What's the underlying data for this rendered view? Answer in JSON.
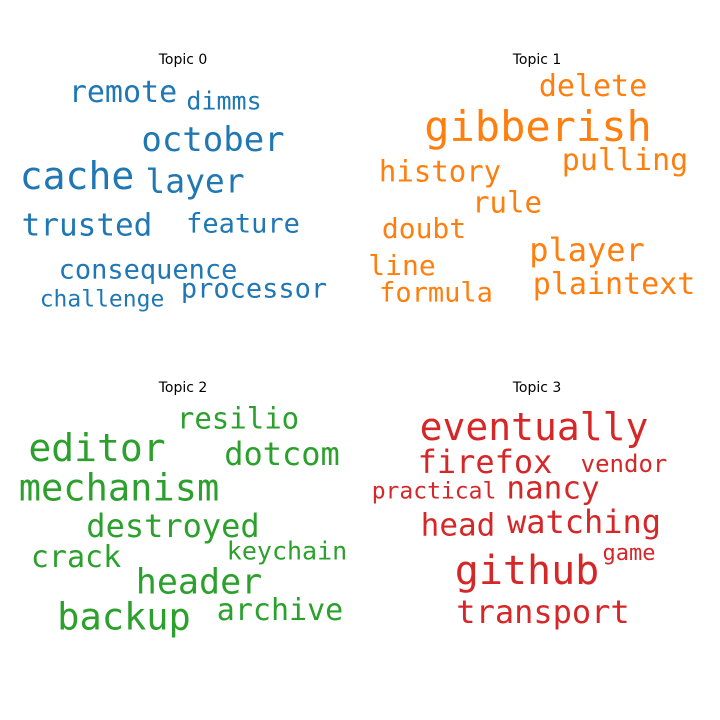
{
  "chart_data": [
    {
      "type": "wordcloud",
      "title": "Topic 0",
      "color": "#1f77b4",
      "words": [
        {
          "text": "remote"
        },
        {
          "text": "dimms"
        },
        {
          "text": "october"
        },
        {
          "text": "cache"
        },
        {
          "text": "layer"
        },
        {
          "text": "trusted"
        },
        {
          "text": "feature"
        },
        {
          "text": "consequence"
        },
        {
          "text": "processor"
        },
        {
          "text": "challenge"
        }
      ]
    },
    {
      "type": "wordcloud",
      "title": "Topic 1",
      "color": "#ff7f0e",
      "words": [
        {
          "text": "delete"
        },
        {
          "text": "gibberish"
        },
        {
          "text": "pulling"
        },
        {
          "text": "history"
        },
        {
          "text": "rule"
        },
        {
          "text": "doubt"
        },
        {
          "text": "player"
        },
        {
          "text": "line"
        },
        {
          "text": "plaintext"
        },
        {
          "text": "formula"
        }
      ]
    },
    {
      "type": "wordcloud",
      "title": "Topic 2",
      "color": "#2ca02c",
      "words": [
        {
          "text": "resilio"
        },
        {
          "text": "editor"
        },
        {
          "text": "dotcom"
        },
        {
          "text": "mechanism"
        },
        {
          "text": "destroyed"
        },
        {
          "text": "keychain"
        },
        {
          "text": "crack"
        },
        {
          "text": "header"
        },
        {
          "text": "backup"
        },
        {
          "text": "archive"
        }
      ]
    },
    {
      "type": "wordcloud",
      "title": "Topic 3",
      "color": "#d62728",
      "words": [
        {
          "text": "eventually"
        },
        {
          "text": "firefox"
        },
        {
          "text": "vendor"
        },
        {
          "text": "practical"
        },
        {
          "text": "nancy"
        },
        {
          "text": "head"
        },
        {
          "text": "watching"
        },
        {
          "text": "game"
        },
        {
          "text": "github"
        },
        {
          "text": "transport"
        }
      ]
    }
  ]
}
